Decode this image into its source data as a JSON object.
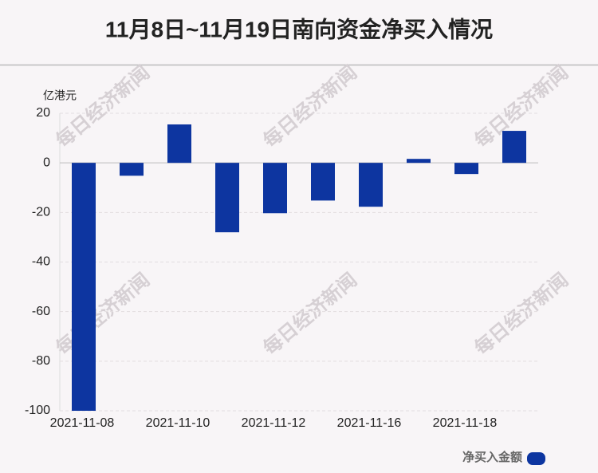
{
  "chart_data": {
    "type": "bar",
    "title": "11月8日~11月19日南向资金净买入情况",
    "y_label": "亿港元",
    "watermark": "每日经济新闻",
    "categories": [
      "2021-11-08",
      null,
      "2021-11-10",
      null,
      "2021-11-12",
      null,
      "2021-11-16",
      null,
      "2021-11-18",
      null
    ],
    "series": [
      {
        "name": "净买入金额",
        "color": "#0d35a0",
        "values": [
          -100,
          -5.2,
          15.5,
          -28,
          -20.3,
          -15.2,
          -17.7,
          1.6,
          -4.5,
          12.9
        ]
      }
    ],
    "ylim": [
      -100,
      20
    ],
    "yticks": [
      20,
      0,
      -20,
      -40,
      -60,
      -80,
      -100
    ],
    "grid": true
  }
}
